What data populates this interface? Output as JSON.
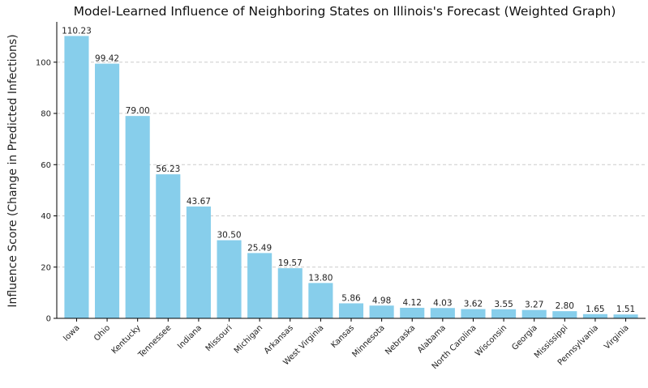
{
  "chart_data": {
    "type": "bar",
    "title": "Model-Learned Influence of Neighboring States on Illinois's Forecast (Weighted Graph)",
    "xlabel": "",
    "ylabel": "Influence Score (Change in Predicted Infections)",
    "categories": [
      "Iowa",
      "Ohio",
      "Kentucky",
      "Tennessee",
      "Indiana",
      "Missouri",
      "Michigan",
      "Arkansas",
      "West Virginia",
      "Kansas",
      "Minnesota",
      "Nebraska",
      "Alabama",
      "North Carolina",
      "Wisconsin",
      "Georgia",
      "Mississippi",
      "Pennsylvania",
      "Virginia"
    ],
    "values": [
      110.23,
      99.42,
      79.0,
      56.23,
      43.67,
      30.5,
      25.49,
      19.57,
      13.8,
      5.86,
      4.98,
      4.12,
      4.03,
      3.62,
      3.55,
      3.27,
      2.8,
      1.65,
      1.51
    ],
    "value_labels": [
      "110.23",
      "99.42",
      "79.00",
      "56.23",
      "43.67",
      "30.50",
      "25.49",
      "19.57",
      "13.80",
      "5.86",
      "4.98",
      "4.12",
      "4.03",
      "3.62",
      "3.55",
      "3.27",
      "2.80",
      "1.65",
      "1.51"
    ],
    "ylim": [
      0,
      115.74
    ],
    "yticks": [
      0,
      20,
      40,
      60,
      80,
      100
    ],
    "grid": "y-dashed",
    "bar_color": "#87ceeb",
    "grid_color": "#cccccc",
    "axis_color": "#000000"
  }
}
